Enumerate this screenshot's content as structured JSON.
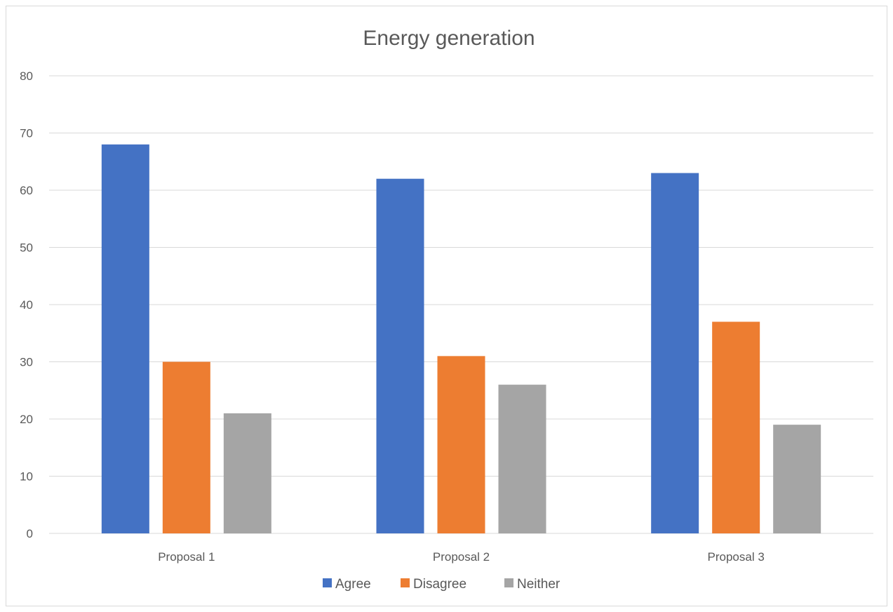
{
  "chart_data": {
    "type": "bar",
    "title": "Energy generation",
    "xlabel": "",
    "ylabel": "",
    "categories": [
      "Proposal 1",
      "Proposal 2",
      "Proposal 3"
    ],
    "series": [
      {
        "name": "Agree",
        "color": "#4472c4",
        "values": [
          68,
          62,
          63
        ]
      },
      {
        "name": "Disagree",
        "color": "#ed7d31",
        "values": [
          30,
          31,
          37
        ]
      },
      {
        "name": "Neither",
        "color": "#a5a5a5",
        "values": [
          21,
          26,
          19
        ]
      }
    ],
    "ylim": [
      0,
      80
    ],
    "yticks": [
      0,
      10,
      20,
      30,
      40,
      50,
      60,
      70,
      80
    ],
    "grid": true,
    "legend_position": "bottom"
  }
}
